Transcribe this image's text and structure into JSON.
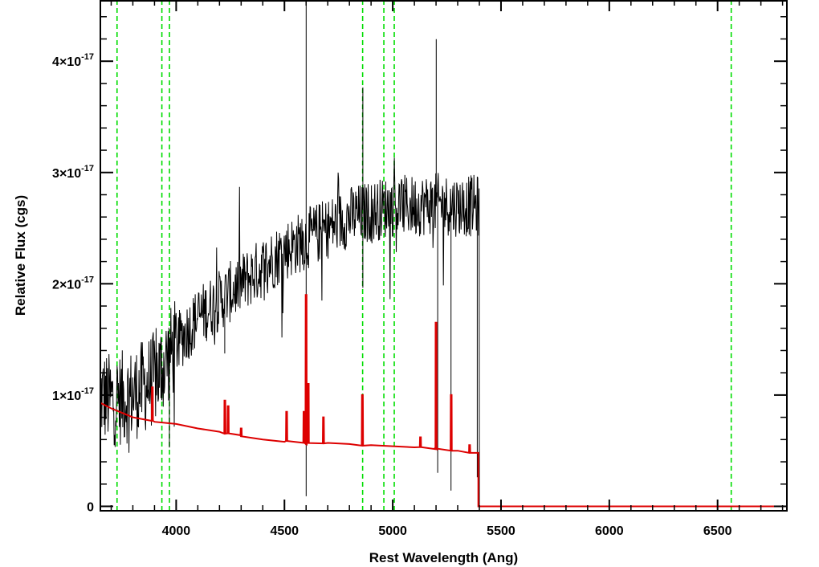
{
  "chart_data": {
    "type": "line",
    "xlabel": "Rest Wavelength (Ang)",
    "ylabel": "Relative Flux (cgs)",
    "xlim": [
      3650,
      6820
    ],
    "ylim": [
      -4e-19,
      4.55e-17
    ],
    "x_ticks": [
      4000,
      4500,
      5000,
      5500,
      6000,
      6500
    ],
    "x_tick_labels": [
      "4000",
      "4500",
      "5000",
      "5500",
      "6000",
      "6500"
    ],
    "y_ticks": [
      0,
      1e-17,
      2e-17,
      3e-17,
      4e-17
    ],
    "y_tick_labels": [
      {
        "mantissa": "0",
        "exponent": ""
      },
      {
        "mantissa": "1×10",
        "exponent": "-17"
      },
      {
        "mantissa": "2×10",
        "exponent": "-17"
      },
      {
        "mantissa": "3×10",
        "exponent": "-17"
      },
      {
        "mantissa": "4×10",
        "exponent": "-17"
      }
    ],
    "grid": false,
    "reference_lines": {
      "color": "#00dd00",
      "style": "dashed",
      "x": [
        3727,
        3934,
        3969,
        4861,
        4959,
        5007,
        6563
      ]
    },
    "series": [
      {
        "color": "#000000",
        "style": "noisy-spectrum",
        "x_range": [
          3650,
          5400
        ],
        "envelope": [
          [
            3650,
            1e-17
          ],
          [
            3700,
            9.5e-18
          ],
          [
            3800,
            1e-17
          ],
          [
            3900,
            1.15e-17
          ],
          [
            4000,
            1.45e-17
          ],
          [
            4100,
            1.7e-17
          ],
          [
            4200,
            1.85e-17
          ],
          [
            4300,
            2e-17
          ],
          [
            4400,
            2.15e-17
          ],
          [
            4500,
            2.3e-17
          ],
          [
            4600,
            2.4e-17
          ],
          [
            4700,
            2.5e-17
          ],
          [
            4800,
            2.6e-17
          ],
          [
            4900,
            2.65e-17
          ],
          [
            5000,
            2.7e-17
          ],
          [
            5100,
            2.7e-17
          ],
          [
            5200,
            2.72e-17
          ],
          [
            5300,
            2.7e-17
          ],
          [
            5390,
            2.7e-17
          ]
        ],
        "features": [
          [
            3930,
            -5.5e-18
          ],
          [
            3968,
            -6e-18
          ],
          [
            4225,
            -5.5e-18
          ],
          [
            4600,
            4.55e-17
          ],
          [
            4600,
            -2.4e-17
          ],
          [
            4862,
            -9e-18
          ],
          [
            4862,
            9e-18
          ],
          [
            5200,
            1.5e-17
          ],
          [
            5208,
            -2.6e-17
          ],
          [
            5270,
            -2.6e-17
          ],
          [
            5390,
            -2.7e-17
          ]
        ]
      },
      {
        "color": "#dd0000",
        "style": "continuum-fit",
        "points": [
          [
            3650,
            9.3e-18
          ],
          [
            3700,
            8.8e-18
          ],
          [
            3800,
            8e-18
          ],
          [
            3900,
            7.6e-18
          ],
          [
            4000,
            7.4e-18
          ],
          [
            4100,
            7e-18
          ],
          [
            4200,
            6.7e-18
          ],
          [
            4300,
            6.3e-18
          ],
          [
            4400,
            6e-18
          ],
          [
            4500,
            5.8e-18
          ],
          [
            4600,
            5.7e-18
          ],
          [
            4700,
            5.7e-18
          ],
          [
            4800,
            5.6e-18
          ],
          [
            4900,
            5.5e-18
          ],
          [
            5000,
            5.4e-18
          ],
          [
            5100,
            5.3e-18
          ],
          [
            5200,
            5.2e-18
          ],
          [
            5300,
            5e-18
          ],
          [
            5395,
            4.8e-18
          ],
          [
            5395,
            0
          ],
          [
            6820,
            0
          ]
        ],
        "spikes": [
          [
            3890,
            1.07e-17
          ],
          [
            4225,
            9.5e-18
          ],
          [
            4240,
            9e-18
          ],
          [
            4300,
            7e-18
          ],
          [
            4510,
            8.5e-18
          ],
          [
            4590,
            8.5e-18
          ],
          [
            4600,
            1.9e-17
          ],
          [
            4610,
            1.1e-17
          ],
          [
            4680,
            8e-18
          ],
          [
            4860,
            1e-17
          ],
          [
            5128,
            6.2e-18
          ],
          [
            5200,
            1.65e-17
          ],
          [
            5270,
            1e-17
          ],
          [
            5355,
            5.5e-18
          ]
        ]
      }
    ]
  }
}
